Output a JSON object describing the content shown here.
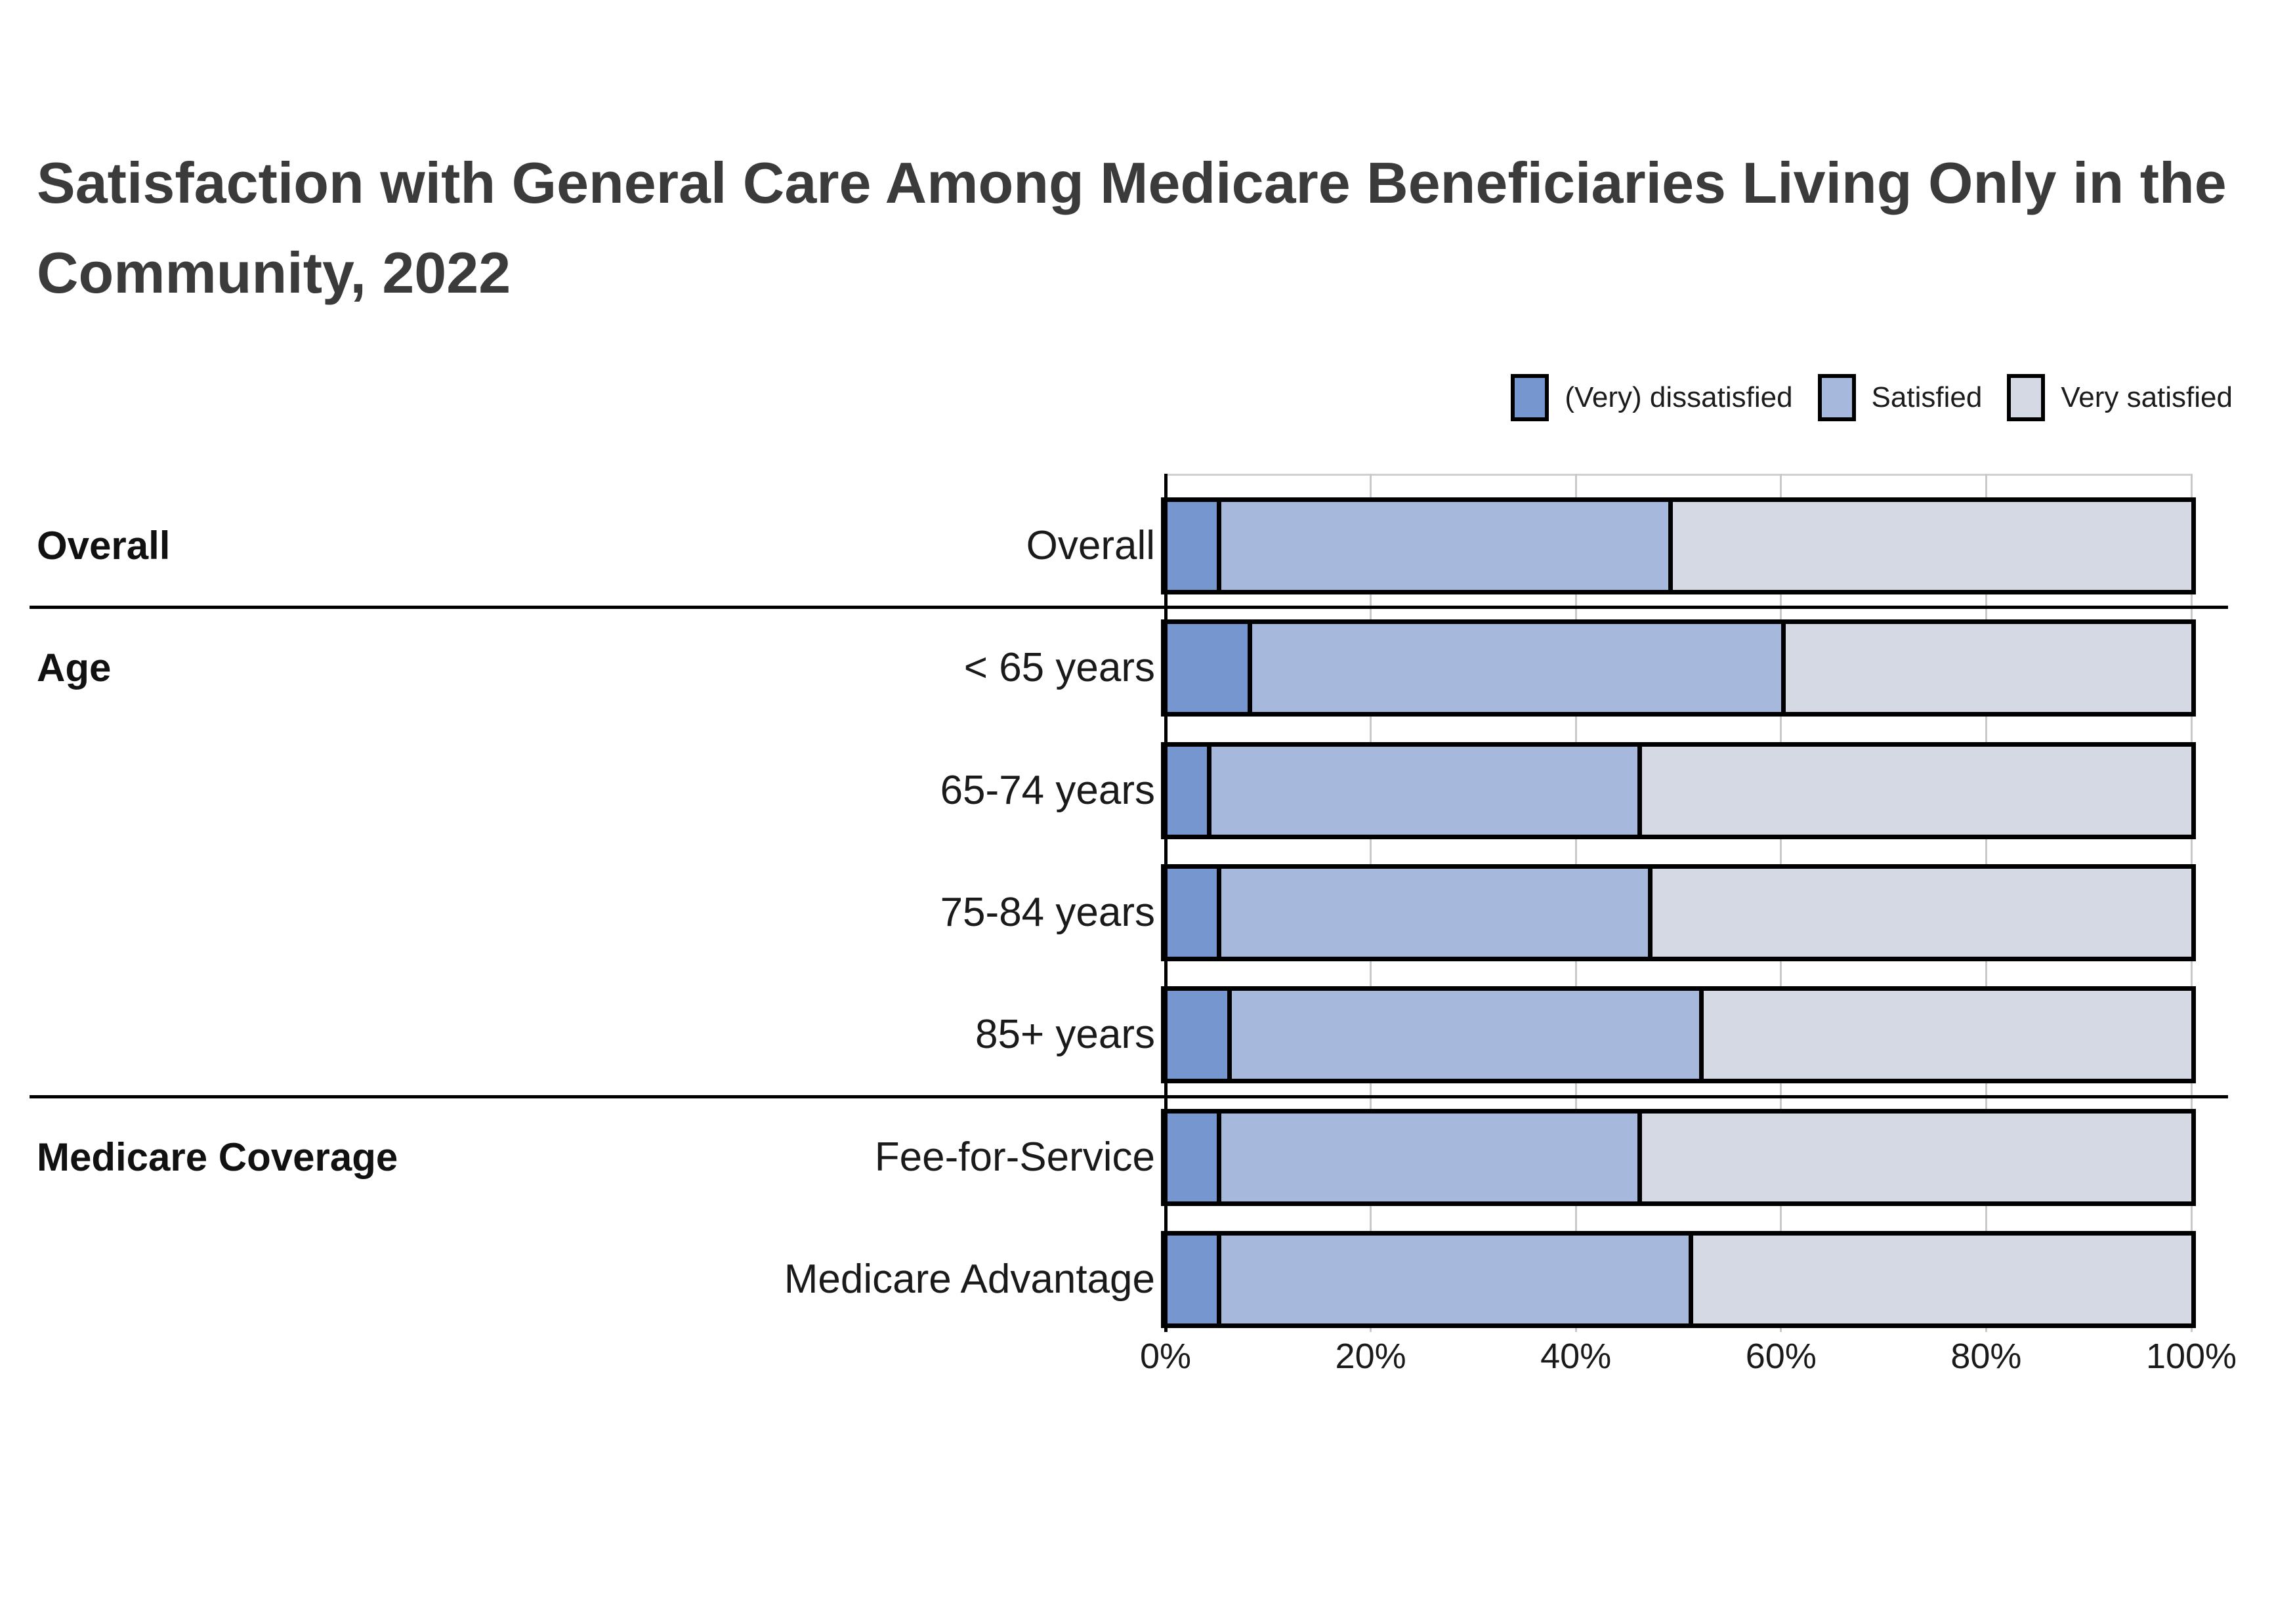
{
  "title": "Satisfaction with General Care Among Medicare Beneficiaries Living Only in the Community, 2022",
  "legend": [
    {
      "label": "(Very) dissatisfied",
      "color": "#7596CE"
    },
    {
      "label": "Satisfied",
      "color": "#A6B8DB"
    },
    {
      "label": "Very satisfied",
      "color": "#D4D9E3"
    }
  ],
  "chart_data": {
    "type": "bar",
    "orientation": "horizontal",
    "stacked": true,
    "title": "Satisfaction with General Care Among Medicare Beneficiaries Living Only in the Community, 2022",
    "categories": [
      "Overall",
      "< 65 years",
      "65-74 years",
      "75-84 years",
      "85+ years",
      "Fee-for-Service",
      "Medicare Advantage"
    ],
    "groups": [
      {
        "label": "Overall",
        "first_row_index": 0,
        "row_count": 1
      },
      {
        "label": "Age",
        "first_row_index": 1,
        "row_count": 4
      },
      {
        "label": "Medicare Coverage",
        "first_row_index": 5,
        "row_count": 2
      }
    ],
    "series": [
      {
        "name": "(Very) dissatisfied",
        "color": "#7596CE",
        "values": [
          5,
          8,
          4,
          5,
          6,
          5,
          5
        ]
      },
      {
        "name": "Satisfied",
        "color": "#A6B8DB",
        "values": [
          44,
          52,
          42,
          42,
          46,
          41,
          46
        ]
      },
      {
        "name": "Very satisfied",
        "color": "#D4D9E3",
        "values": [
          51,
          40,
          54,
          53,
          48,
          54,
          49
        ]
      }
    ],
    "xlim": [
      0,
      100
    ],
    "x_ticks": [
      {
        "value": 0,
        "label": "0%"
      },
      {
        "value": 20,
        "label": "20%"
      },
      {
        "value": 40,
        "label": "40%"
      },
      {
        "value": 60,
        "label": "60%"
      },
      {
        "value": 80,
        "label": "80%"
      },
      {
        "value": 100,
        "label": "100%"
      }
    ],
    "grid": "vertical",
    "legend_position": "top-right"
  }
}
